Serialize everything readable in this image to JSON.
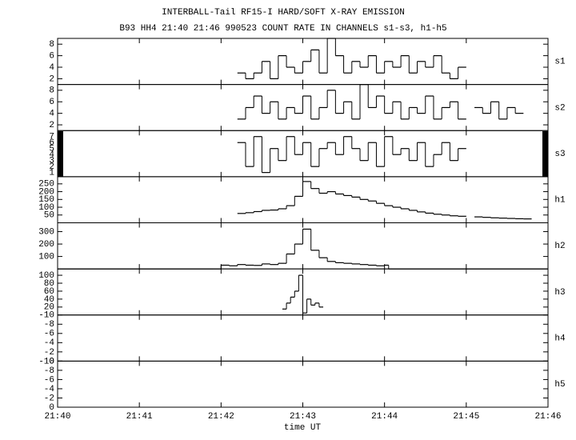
{
  "chart_data": [
    {
      "type": "line",
      "step": true,
      "title": "INTERBALL-Tail RF15-I HARD/SOFT X-RAY EMISSION",
      "subtitle": "B93 HH4 21:40 21:46 990523  COUNT RATE IN CHANNELS s1-s3, h1-h5",
      "label": "s1",
      "color": "#000000",
      "ylim": [
        1,
        9
      ],
      "yticks": [
        2,
        4,
        6,
        8
      ],
      "x": [
        1302.2,
        1302.3,
        1302.4,
        1302.5,
        1302.6,
        1302.7,
        1302.8,
        1302.9,
        1303,
        1303.1,
        1303.2,
        1303.3,
        1303.4,
        1303.5,
        1303.6,
        1303.7,
        1303.8,
        1303.9,
        1304,
        1304.1,
        1304.2,
        1304.3,
        1304.4,
        1304.5,
        1304.6,
        1304.7,
        1304.8,
        1304.9
      ],
      "values": [
        3,
        2,
        3,
        5,
        2,
        6,
        4,
        3,
        5,
        7,
        3,
        9,
        6,
        3,
        5,
        4,
        6,
        3,
        5,
        4,
        6,
        3,
        5,
        4,
        6,
        3,
        2,
        4
      ]
    },
    {
      "type": "line",
      "step": true,
      "label": "s2",
      "color": "#000000",
      "ylim": [
        1,
        9
      ],
      "yticks": [
        2,
        4,
        6,
        8
      ],
      "x": [
        1302.2,
        1302.3,
        1302.4,
        1302.5,
        1302.6,
        1302.7,
        1302.8,
        1302.9,
        1303,
        1303.1,
        1303.2,
        1303.3,
        1303.4,
        1303.5,
        1303.6,
        1303.7,
        1303.8,
        1303.9,
        1304,
        1304.1,
        1304.2,
        1304.3,
        1304.4,
        1304.5,
        1304.6,
        1304.7,
        1304.8,
        1304.9,
        1305,
        1305.1,
        1305.2,
        1305.3,
        1305.4,
        1305.5,
        1305.6
      ],
      "values": [
        3,
        5,
        7,
        4,
        6,
        3,
        5,
        4,
        7,
        3,
        5,
        8,
        4,
        6,
        3,
        9,
        5,
        7,
        4,
        6,
        3,
        5,
        4,
        7,
        3,
        5,
        6,
        3,
        null,
        5,
        4,
        6,
        3,
        5,
        4
      ]
    },
    {
      "type": "line",
      "step": true,
      "label": "s3",
      "color": "#000000",
      "ylim": [
        0.3,
        8
      ],
      "yticks": [
        1,
        2,
        3,
        4,
        5,
        6,
        7
      ],
      "x": [
        1302.2,
        1302.3,
        1302.4,
        1302.5,
        1302.6,
        1302.7,
        1302.8,
        1302.9,
        1303,
        1303.1,
        1303.2,
        1303.3,
        1303.4,
        1303.5,
        1303.6,
        1303.7,
        1303.8,
        1303.9,
        1304,
        1304.1,
        1304.2,
        1304.3,
        1304.4,
        1304.5,
        1304.6,
        1304.7,
        1304.8,
        1304.9
      ],
      "values": [
        6,
        2,
        7,
        1,
        5,
        3,
        7,
        4,
        6,
        2,
        5,
        6,
        4,
        7,
        5,
        3,
        6,
        2,
        7,
        4,
        5,
        3,
        6,
        2,
        4,
        6,
        3,
        5
      ]
    },
    {
      "type": "line",
      "step": true,
      "label": "h1",
      "color": "#000000",
      "ylim": [
        0,
        296
      ],
      "yticks": [
        50,
        100,
        150,
        200,
        250
      ],
      "x": [
        1302.2,
        1302.3,
        1302.4,
        1302.5,
        1302.6,
        1302.7,
        1302.8,
        1302.9,
        1303,
        1303.1,
        1303.2,
        1303.3,
        1303.4,
        1303.5,
        1303.6,
        1303.7,
        1303.8,
        1303.9,
        1304,
        1304.1,
        1304.2,
        1304.3,
        1304.4,
        1304.5,
        1304.6,
        1304.7,
        1304.8,
        1304.9,
        1305,
        1305.1,
        1305.2,
        1305.3,
        1305.4,
        1305.5,
        1305.6,
        1305.7
      ],
      "values": [
        60,
        65,
        72,
        80,
        82,
        90,
        110,
        170,
        265,
        220,
        190,
        200,
        185,
        175,
        165,
        150,
        140,
        125,
        110,
        100,
        90,
        80,
        70,
        62,
        55,
        50,
        45,
        42,
        null,
        38,
        35,
        32,
        30,
        28,
        26,
        25
      ]
    },
    {
      "type": "line",
      "step": true,
      "label": "h2",
      "color": "#000000",
      "ylim": [
        0,
        371
      ],
      "yticks": [
        100,
        200,
        300
      ],
      "x": [
        1300,
        1301.9,
        1302,
        1302.1,
        1302.2,
        1302.3,
        1302.4,
        1302.5,
        1302.6,
        1302.7,
        1302.8,
        1302.9,
        1303,
        1303.1,
        1303.2,
        1303.3,
        1303.4,
        1303.5,
        1303.6,
        1303.7,
        1303.8,
        1303.9,
        1304,
        1304.05,
        1306
      ],
      "values": [
        0,
        0,
        30,
        25,
        35,
        30,
        28,
        40,
        35,
        45,
        120,
        200,
        320,
        150,
        90,
        60,
        50,
        45,
        40,
        35,
        30,
        25,
        30,
        0,
        0
      ]
    },
    {
      "type": "line",
      "step": true,
      "label": "h3",
      "color": "#000000",
      "ylim": [
        0,
        116
      ],
      "yticks": [
        20,
        40,
        60,
        80,
        100
      ],
      "x": [
        1302.75,
        1302.8,
        1302.85,
        1302.9,
        1302.95,
        1303,
        1303.05,
        1303.1,
        1303.15,
        1303.2
      ],
      "values": [
        15,
        30,
        45,
        60,
        100,
        5,
        40,
        25,
        30,
        20
      ]
    },
    {
      "type": "line",
      "step": true,
      "label": "h4",
      "ylim": [
        0,
        -10
      ],
      "yticks": [
        -10,
        -8,
        -6,
        -4,
        -2,
        0
      ]
    },
    {
      "type": "line",
      "step": true,
      "label": "h5",
      "ylim": [
        0,
        -10
      ],
      "yticks": [
        -10,
        -8,
        -6,
        -4,
        -2,
        0
      ],
      "x_label": "time UT",
      "xlim": [
        1300,
        1306
      ],
      "xticks": [
        {
          "value": 1300,
          "label": "21:40"
        },
        {
          "value": 1301,
          "label": "21:41"
        },
        {
          "value": 1302,
          "label": "21:42"
        },
        {
          "value": 1303,
          "label": "21:43"
        },
        {
          "value": 1304,
          "label": "21:44"
        },
        {
          "value": 1305,
          "label": "21:45"
        },
        {
          "value": 1306,
          "label": "21:46"
        }
      ]
    }
  ]
}
